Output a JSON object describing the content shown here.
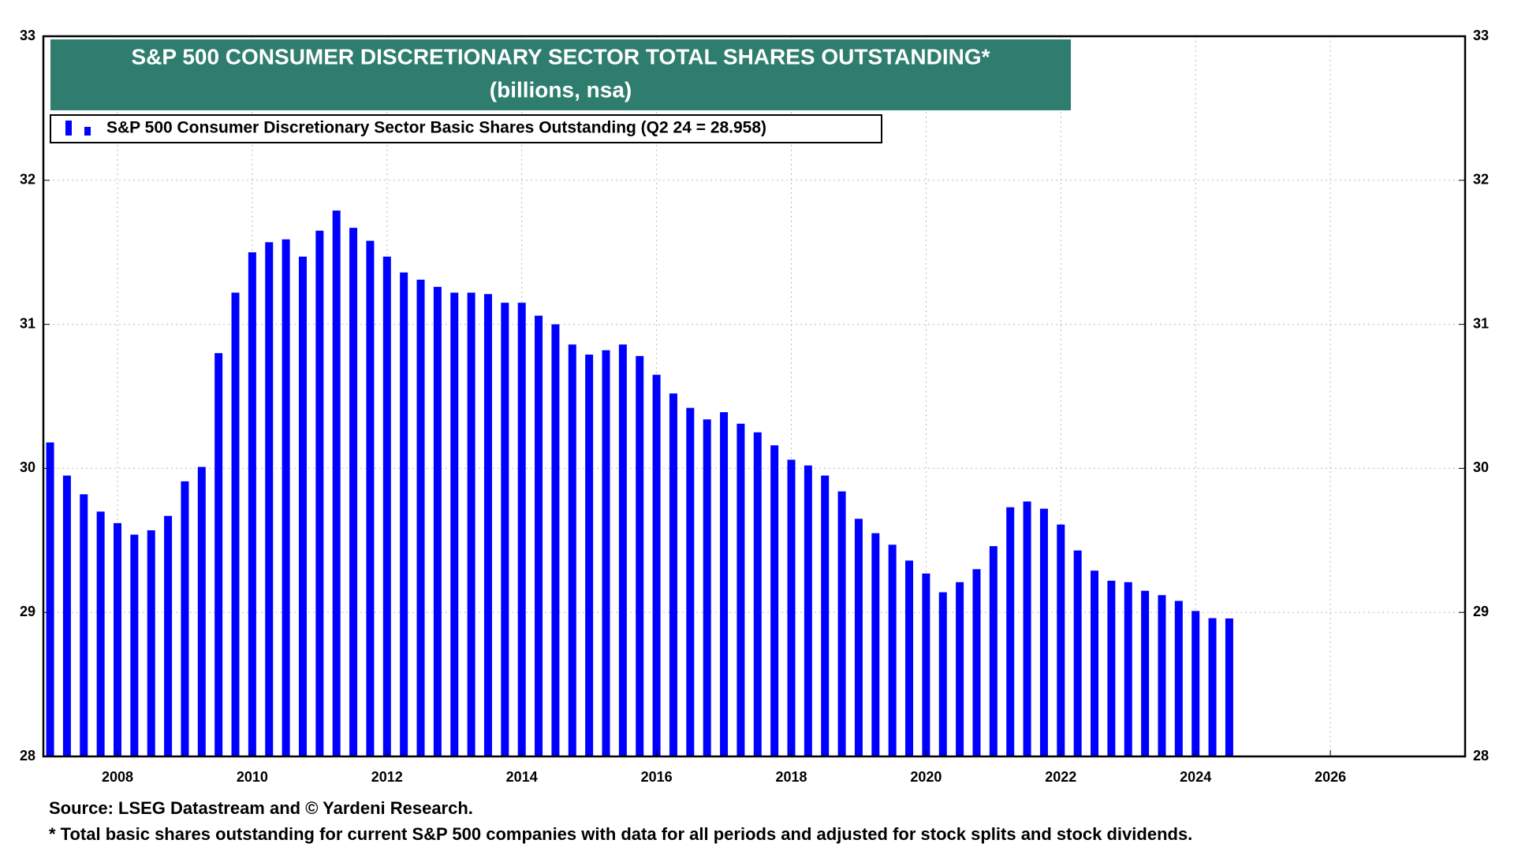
{
  "chart_data": {
    "type": "bar",
    "title": "S&P 500 CONSUMER DISCRETIONARY SECTOR TOTAL SHARES OUTSTANDING*",
    "subtitle": "(billions, nsa)",
    "x": [
      2007,
      2007.25,
      2007.5,
      2007.75,
      2008,
      2008.25,
      2008.5,
      2008.75,
      2009,
      2009.25,
      2009.5,
      2009.75,
      2010,
      2010.25,
      2010.5,
      2010.75,
      2011,
      2011.25,
      2011.5,
      2011.75,
      2012,
      2012.25,
      2012.5,
      2012.75,
      2013,
      2013.25,
      2013.5,
      2013.75,
      2014,
      2014.25,
      2014.5,
      2014.75,
      2015,
      2015.25,
      2015.5,
      2015.75,
      2016,
      2016.25,
      2016.5,
      2016.75,
      2017,
      2017.25,
      2017.5,
      2017.75,
      2018,
      2018.25,
      2018.5,
      2018.75,
      2019,
      2019.25,
      2019.5,
      2019.75,
      2020,
      2020.25,
      2020.5,
      2020.75,
      2021,
      2021.25,
      2021.5,
      2021.75,
      2022,
      2022.25,
      2022.5,
      2022.75,
      2023,
      2023.25,
      2023.5,
      2023.75,
      2024,
      2024.25,
      2024.5
    ],
    "series": [
      {
        "name": "S&P 500 Consumer Discretionary Sector Basic Shares Outstanding (Q2 24 = 28.958)",
        "color": "#0000ff",
        "values": [
          30.18,
          29.95,
          29.82,
          29.7,
          29.62,
          29.54,
          29.57,
          29.67,
          29.91,
          30.01,
          30.8,
          31.22,
          31.5,
          31.57,
          31.59,
          31.47,
          31.65,
          31.79,
          31.67,
          31.58,
          31.47,
          31.36,
          31.31,
          31.26,
          31.22,
          31.22,
          31.21,
          31.15,
          31.15,
          31.06,
          31.0,
          30.86,
          30.79,
          30.82,
          30.86,
          30.78,
          30.65,
          30.52,
          30.42,
          30.34,
          30.39,
          30.31,
          30.25,
          30.16,
          30.06,
          30.02,
          29.95,
          29.84,
          29.65,
          29.55,
          29.47,
          29.36,
          29.27,
          29.14,
          29.21,
          29.3,
          29.46,
          29.73,
          29.77,
          29.72,
          29.61,
          29.43,
          29.29,
          29.22,
          29.21,
          29.15,
          29.12,
          29.08,
          29.01,
          28.96,
          28.958
        ]
      }
    ],
    "xlim": [
      2006.9,
      2028
    ],
    "xticks": [
      2008,
      2010,
      2012,
      2014,
      2016,
      2018,
      2020,
      2022,
      2024,
      2026
    ],
    "ylim": [
      28,
      33
    ],
    "yticks": [
      28,
      29,
      30,
      31,
      32,
      33
    ],
    "grid": true,
    "source": "Source: LSEG Datastream and © Yardeni Research.",
    "note": "* Total basic shares outstanding for current S&P 500 companies with data for all periods and adjusted for stock splits and stock dividends."
  }
}
